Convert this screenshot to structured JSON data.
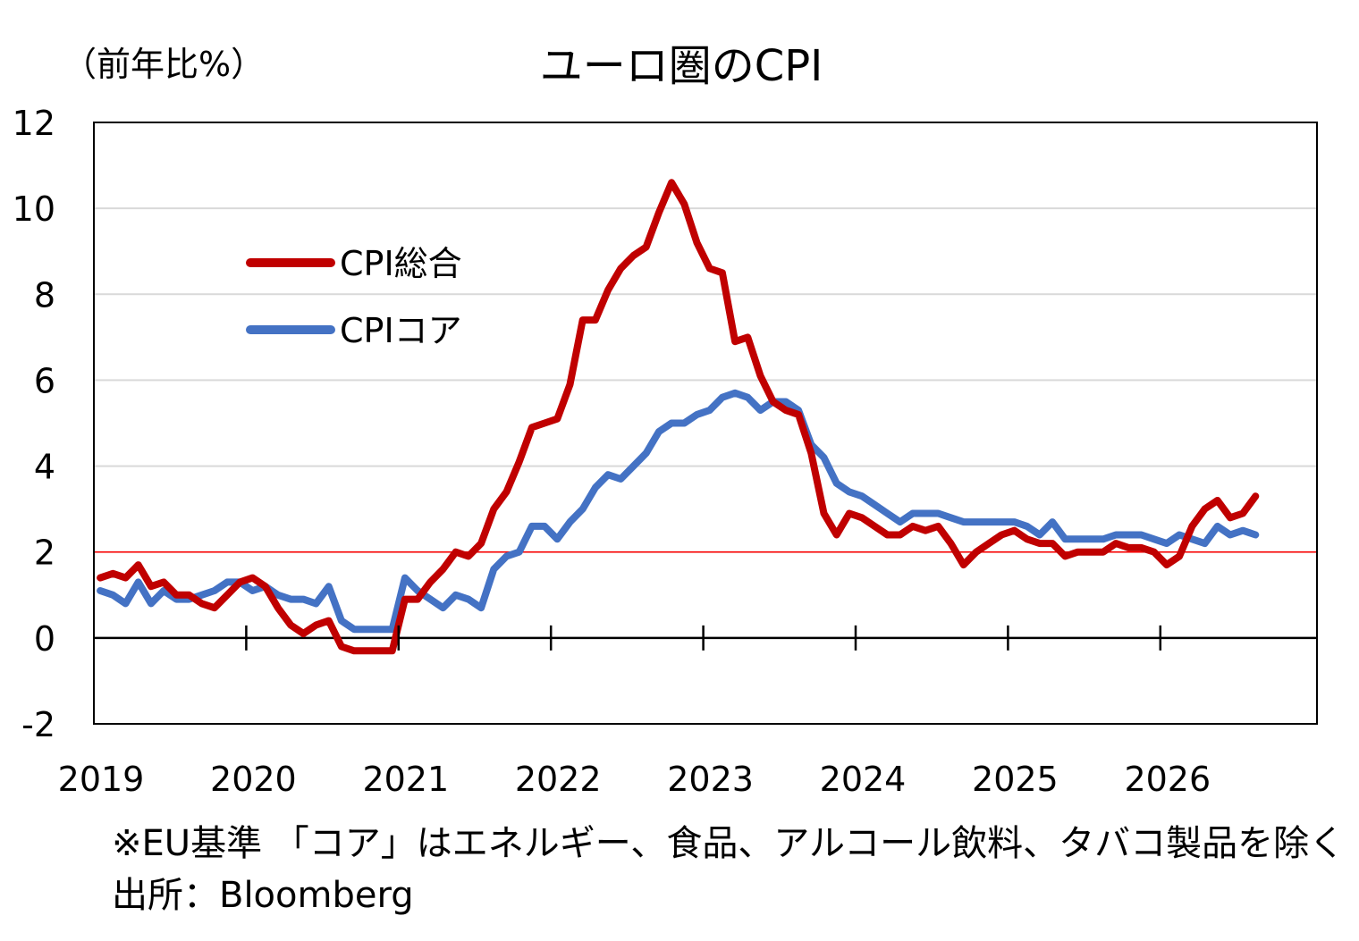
{
  "chart_data": {
    "type": "line",
    "title": "ユーロ圏のCPI",
    "ylabel": "（前年比%）",
    "xlabel": "",
    "ylim": [
      -2,
      12
    ],
    "yticks": [
      "-2",
      "0",
      "2",
      "4",
      "6",
      "8",
      "10",
      "12"
    ],
    "xticks": [
      "2019",
      "2020",
      "2021",
      "2022",
      "2023",
      "2024",
      "2025",
      "2026"
    ],
    "grid": true,
    "reference_line": {
      "y": 2,
      "color": "#ff0000"
    },
    "legend_position": "upper-left",
    "series": [
      {
        "name": "CPI総合",
        "color": "#c00000",
        "start": "2019-01",
        "values": [
          1.4,
          1.5,
          1.4,
          1.7,
          1.2,
          1.3,
          1.0,
          1.0,
          0.8,
          0.7,
          1.0,
          1.3,
          1.4,
          1.2,
          0.7,
          0.3,
          0.1,
          0.3,
          0.4,
          -0.2,
          -0.3,
          -0.3,
          -0.3,
          -0.3,
          0.9,
          0.9,
          1.3,
          1.6,
          2.0,
          1.9,
          2.2,
          3.0,
          3.4,
          4.1,
          4.9,
          5.0,
          5.1,
          5.9,
          7.4,
          7.4,
          8.1,
          8.6,
          8.9,
          9.1,
          9.9,
          10.6,
          10.1,
          9.2,
          8.6,
          8.5,
          6.9,
          7.0,
          6.1,
          5.5,
          5.3,
          5.2,
          4.3,
          2.9,
          2.4,
          2.9,
          2.8,
          2.6,
          2.4,
          2.4,
          2.6,
          2.5,
          2.6,
          2.2,
          1.7,
          2.0,
          2.2,
          2.4,
          2.5,
          2.3,
          2.2,
          2.2,
          1.9,
          2.0,
          2.0,
          2.0,
          2.2,
          2.1,
          2.1,
          2.0,
          1.7,
          1.9,
          2.6,
          3.0,
          3.2,
          2.8,
          2.9,
          3.3
        ]
      },
      {
        "name": "CPIコア",
        "color": "#4472c4",
        "start": "2019-01",
        "values": [
          1.1,
          1.0,
          0.8,
          1.3,
          0.8,
          1.1,
          0.9,
          0.9,
          1.0,
          1.1,
          1.3,
          1.3,
          1.1,
          1.2,
          1.0,
          0.9,
          0.9,
          0.8,
          1.2,
          0.4,
          0.2,
          0.2,
          0.2,
          0.2,
          1.4,
          1.1,
          0.9,
          0.7,
          1.0,
          0.9,
          0.7,
          1.6,
          1.9,
          2.0,
          2.6,
          2.6,
          2.3,
          2.7,
          3.0,
          3.5,
          3.8,
          3.7,
          4.0,
          4.3,
          4.8,
          5.0,
          5.0,
          5.2,
          5.3,
          5.6,
          5.7,
          5.6,
          5.3,
          5.5,
          5.5,
          5.3,
          4.5,
          4.2,
          3.6,
          3.4,
          3.3,
          3.1,
          2.9,
          2.7,
          2.9,
          2.9,
          2.9,
          2.8,
          2.7,
          2.7,
          2.7,
          2.7,
          2.7,
          2.6,
          2.4,
          2.7,
          2.3,
          2.3,
          2.3,
          2.3,
          2.4,
          2.4,
          2.4,
          2.3,
          2.2,
          2.4,
          2.3,
          2.2,
          2.6,
          2.4,
          2.5,
          2.4
        ]
      }
    ]
  },
  "notes": {
    "definition": "※EU基準 「コア」はエネルギー、食品、アルコール飲料、タバコ製品を除く",
    "source": "出所：Bloomberg"
  }
}
